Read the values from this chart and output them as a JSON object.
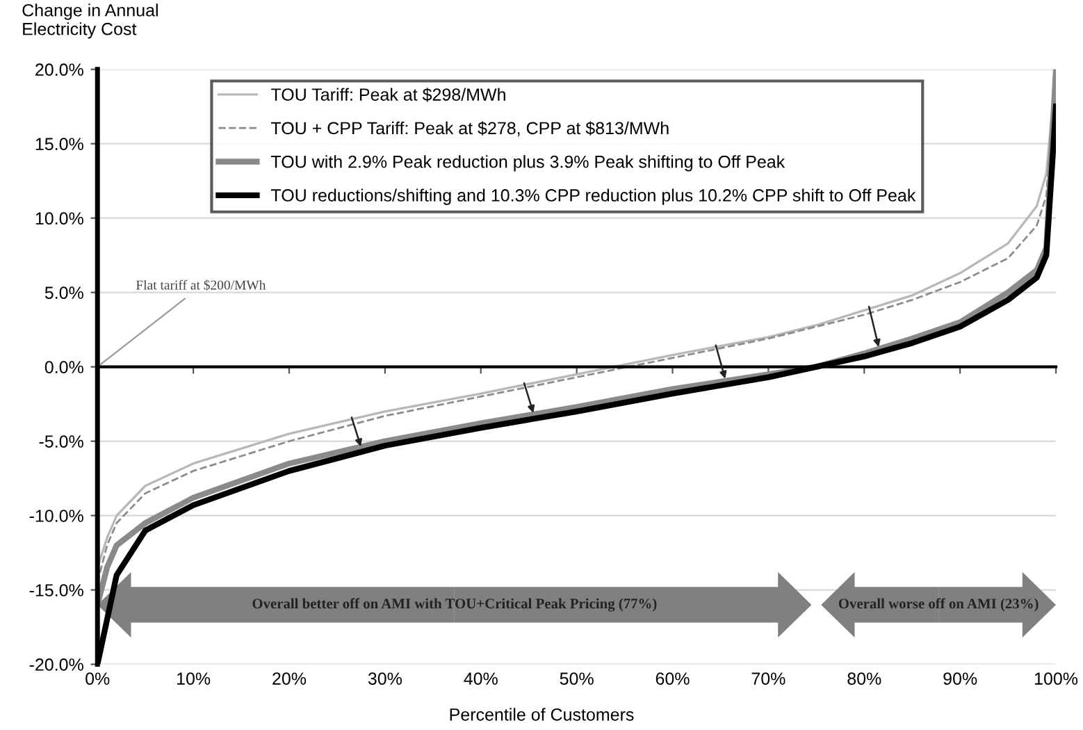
{
  "chart_data": {
    "type": "line",
    "xlabel": "Percentile of Customers",
    "ylabel": "Change in Annual\nElectricity Cost",
    "x": [
      0,
      1,
      2,
      5,
      10,
      20,
      30,
      40,
      50,
      60,
      70,
      75,
      80,
      85,
      90,
      95,
      98,
      99,
      100
    ],
    "series": [
      {
        "name": "TOU Tariff: Peak at $298/MWh",
        "color": "#b8b8b8",
        "line_style": "solid",
        "values": [
          -13.5,
          -11.5,
          -10,
          -8,
          -6.5,
          -4.5,
          -3,
          -1.8,
          -0.5,
          0.8,
          2.0,
          2.8,
          3.8,
          4.8,
          6.3,
          8.3,
          10.8,
          13,
          20
        ]
      },
      {
        "name": "TOU + CPP Tariff: Peak at $278, CPP at $813/MWh",
        "color": "#8c8c8c",
        "line_style": "dashed",
        "values": [
          -14.5,
          -12,
          -10.5,
          -8.5,
          -7,
          -5,
          -3.3,
          -2,
          -0.7,
          0.6,
          1.9,
          2.7,
          3.5,
          4.5,
          5.7,
          7.3,
          9.5,
          11.5,
          20
        ]
      },
      {
        "name": "TOU with 2.9% Peak reduction plus 3.9% Peak shifting to Off Peak",
        "color": "#8a8a8a",
        "line_style": "solid",
        "values": [
          -16,
          -13.5,
          -12,
          -10.5,
          -8.8,
          -6.5,
          -5,
          -3.8,
          -2.7,
          -1.5,
          -0.5,
          0,
          0.9,
          1.9,
          3.0,
          5.0,
          6.5,
          8,
          20
        ]
      },
      {
        "name": "TOU reductions/shifting and 10.3% CPP reduction plus 10.2% CPP shift to Off Peak",
        "color": "#000000",
        "line_style": "solid",
        "values": [
          -20,
          -17,
          -14,
          -11,
          -9.3,
          -7,
          -5.3,
          -4.1,
          -3,
          -1.8,
          -0.7,
          0,
          0.7,
          1.6,
          2.7,
          4.5,
          6,
          7.5,
          17.5
        ]
      }
    ],
    "xlim": [
      0,
      100
    ],
    "ylim": [
      -20,
      20
    ],
    "xticks": [
      {
        "value": 0,
        "label": "0%"
      },
      {
        "value": 10,
        "label": "10%"
      },
      {
        "value": 20,
        "label": "20%"
      },
      {
        "value": 30,
        "label": "30%"
      },
      {
        "value": 40,
        "label": "40%"
      },
      {
        "value": 50,
        "label": "50%"
      },
      {
        "value": 60,
        "label": "60%"
      },
      {
        "value": 70,
        "label": "70%"
      },
      {
        "value": 80,
        "label": "80%"
      },
      {
        "value": 90,
        "label": "90%"
      },
      {
        "value": 100,
        "label": "100%"
      }
    ],
    "yticks": [
      {
        "value": -20,
        "label": "-20.0%"
      },
      {
        "value": -15,
        "label": "-15.0%"
      },
      {
        "value": -10,
        "label": "-10.0%"
      },
      {
        "value": -5,
        "label": "-5.0%"
      },
      {
        "value": 0,
        "label": "0.0%"
      },
      {
        "value": 5,
        "label": "5.0%"
      },
      {
        "value": 10,
        "label": "10.0%"
      },
      {
        "value": 15,
        "label": "15.0%"
      },
      {
        "value": 20,
        "label": "20.0%"
      }
    ],
    "grid": "y",
    "legend": "top",
    "marker": "none",
    "annotations": [
      "Flat tariff at $200/MWh",
      "Overall better off on AMI with TOU+Critical Peak Pricing (77%)",
      "Overall worse off on AMI (23%)"
    ]
  }
}
